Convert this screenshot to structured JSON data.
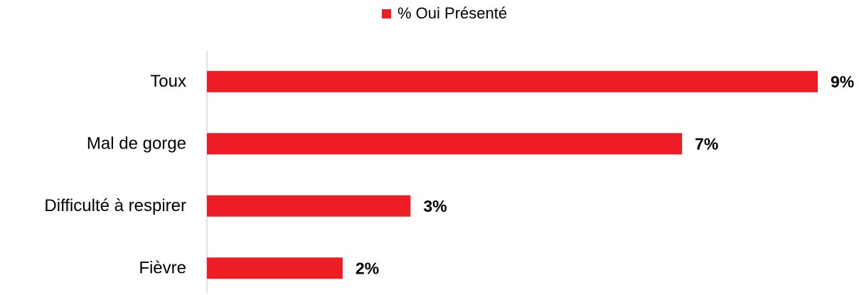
{
  "chart_data": {
    "type": "bar",
    "categories": [
      "Toux",
      "Mal de gorge",
      "Difficulté à respirer",
      "Fièvre"
    ],
    "series": [
      {
        "name": "% Oui Présenté",
        "color": "#ee1c25",
        "values": [
          9,
          7,
          3,
          2
        ],
        "value_labels": [
          "9%",
          "7%",
          "3%",
          "2%"
        ]
      }
    ],
    "xlim": [
      0,
      9
    ]
  }
}
